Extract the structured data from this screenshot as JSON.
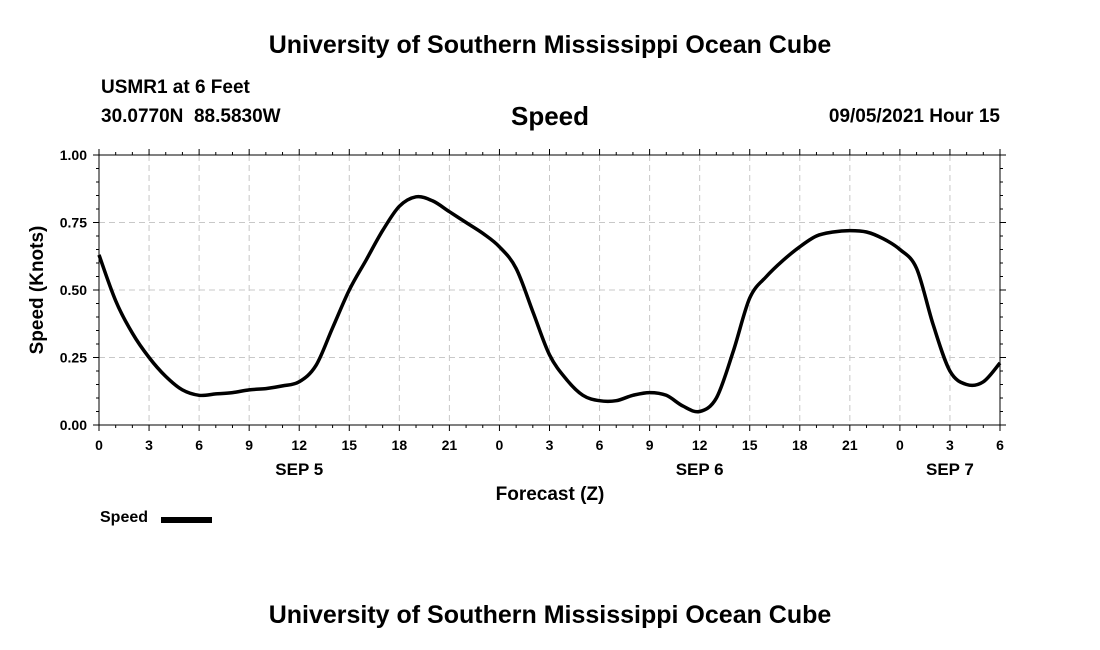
{
  "header": {
    "title_top": "University of Southern Mississippi Ocean Cube",
    "station": "USMR1 at 6 Feet",
    "coords": "30.0770N  88.5830W",
    "chart_title": "Speed",
    "datetime": "09/05/2021 Hour 15"
  },
  "footer": {
    "title_bottom": "University of Southern Mississippi Ocean Cube"
  },
  "legend": {
    "label": "Speed",
    "color": "#000000"
  },
  "chart_data": {
    "type": "line",
    "title": "Speed",
    "xlabel": "Forecast (Z)",
    "ylabel": "Speed (Knots)",
    "xlim": [
      0,
      54
    ],
    "ylim": [
      0,
      1
    ],
    "grid": true,
    "legend_position": "bottom-left",
    "x_ticks": [
      0,
      3,
      6,
      9,
      12,
      15,
      18,
      21,
      24,
      27,
      30,
      33,
      36,
      39,
      42,
      45,
      48,
      51,
      54
    ],
    "x_tick_labels": [
      "0",
      "3",
      "6",
      "9",
      "12",
      "15",
      "18",
      "21",
      "0",
      "3",
      "6",
      "9",
      "12",
      "15",
      "18",
      "21",
      "0",
      "3",
      "6"
    ],
    "y_ticks": [
      0,
      0.25,
      0.5,
      0.75,
      1.0
    ],
    "y_tick_labels": [
      "0.00",
      "0.25",
      "0.50",
      "0.75",
      "1.00"
    ],
    "date_labels": [
      {
        "x": 12,
        "label": "SEP 5"
      },
      {
        "x": 36,
        "label": "SEP 6"
      },
      {
        "x": 51,
        "label": "SEP 7"
      }
    ],
    "series": [
      {
        "name": "Speed",
        "color": "#000000",
        "x": [
          0,
          1,
          2,
          3,
          4,
          5,
          6,
          7,
          8,
          9,
          10,
          11,
          12,
          13,
          14,
          15,
          16,
          17,
          18,
          19,
          20,
          21,
          22,
          23,
          24,
          25,
          26,
          27,
          28,
          29,
          30,
          31,
          32,
          33,
          34,
          35,
          36,
          37,
          38,
          39,
          40,
          41,
          42,
          43,
          44,
          45,
          46,
          47,
          48,
          49,
          50,
          51,
          52,
          53,
          54
        ],
        "y": [
          0.63,
          0.46,
          0.34,
          0.25,
          0.18,
          0.13,
          0.11,
          0.115,
          0.12,
          0.13,
          0.135,
          0.145,
          0.16,
          0.22,
          0.36,
          0.5,
          0.61,
          0.72,
          0.81,
          0.845,
          0.83,
          0.79,
          0.75,
          0.71,
          0.66,
          0.58,
          0.42,
          0.26,
          0.17,
          0.11,
          0.09,
          0.09,
          0.11,
          0.12,
          0.11,
          0.07,
          0.05,
          0.1,
          0.27,
          0.47,
          0.55,
          0.61,
          0.66,
          0.7,
          0.715,
          0.72,
          0.715,
          0.69,
          0.65,
          0.58,
          0.37,
          0.2,
          0.15,
          0.16,
          0.23
        ]
      }
    ]
  }
}
